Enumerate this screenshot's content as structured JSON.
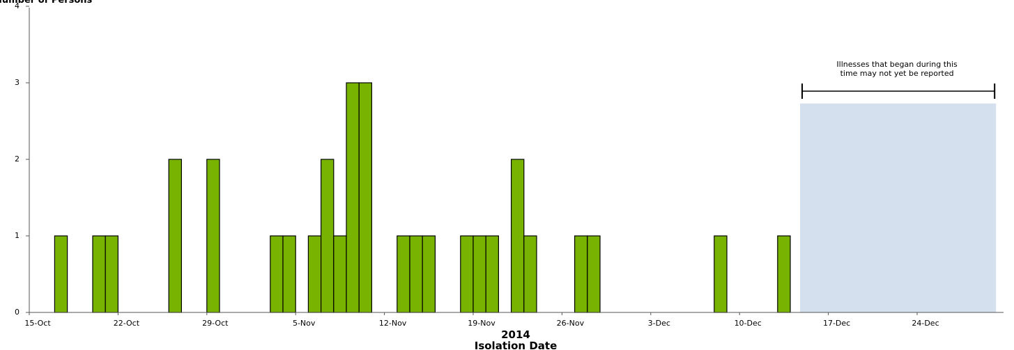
{
  "chart_data": {
    "type": "bar",
    "ylabel": "Number of Persons",
    "xlabel_line1": "2014",
    "xlabel_line2": "Isolation Date",
    "ylim": [
      0,
      4
    ],
    "yticks": [
      0,
      1,
      2,
      3,
      4
    ],
    "x_start": "15-Oct",
    "x_end": "30-Dec",
    "xticks": [
      "15-Oct",
      "22-Oct",
      "29-Oct",
      "5-Nov",
      "12-Nov",
      "19-Nov",
      "26-Nov",
      "3-Dec",
      "10-Dec",
      "17-Dec",
      "24-Dec"
    ],
    "bar_color": "#77b300",
    "bars": [
      {
        "date": "17-Oct",
        "value": 1
      },
      {
        "date": "20-Oct",
        "value": 1
      },
      {
        "date": "21-Oct",
        "value": 1
      },
      {
        "date": "26-Oct",
        "value": 2
      },
      {
        "date": "29-Oct",
        "value": 2
      },
      {
        "date": "3-Nov",
        "value": 1
      },
      {
        "date": "4-Nov",
        "value": 1
      },
      {
        "date": "6-Nov",
        "value": 1
      },
      {
        "date": "7-Nov",
        "value": 2
      },
      {
        "date": "8-Nov",
        "value": 1
      },
      {
        "date": "9-Nov",
        "value": 3
      },
      {
        "date": "10-Nov",
        "value": 3
      },
      {
        "date": "13-Nov",
        "value": 1
      },
      {
        "date": "14-Nov",
        "value": 1
      },
      {
        "date": "15-Nov",
        "value": 1
      },
      {
        "date": "18-Nov",
        "value": 1
      },
      {
        "date": "19-Nov",
        "value": 1
      },
      {
        "date": "20-Nov",
        "value": 1
      },
      {
        "date": "22-Nov",
        "value": 2
      },
      {
        "date": "23-Nov",
        "value": 1
      },
      {
        "date": "27-Nov",
        "value": 1
      },
      {
        "date": "28-Nov",
        "value": 1
      },
      {
        "date": "8-Dec",
        "value": 1
      },
      {
        "date": "13-Dec",
        "value": 1
      }
    ],
    "reporting_lag": {
      "start": "14-Dec",
      "end": "30-Dec",
      "height": 2.73,
      "color": "#d4e0ee",
      "note_line1": "Illnesses that began during this",
      "note_line2": "time may not yet be reported"
    }
  }
}
